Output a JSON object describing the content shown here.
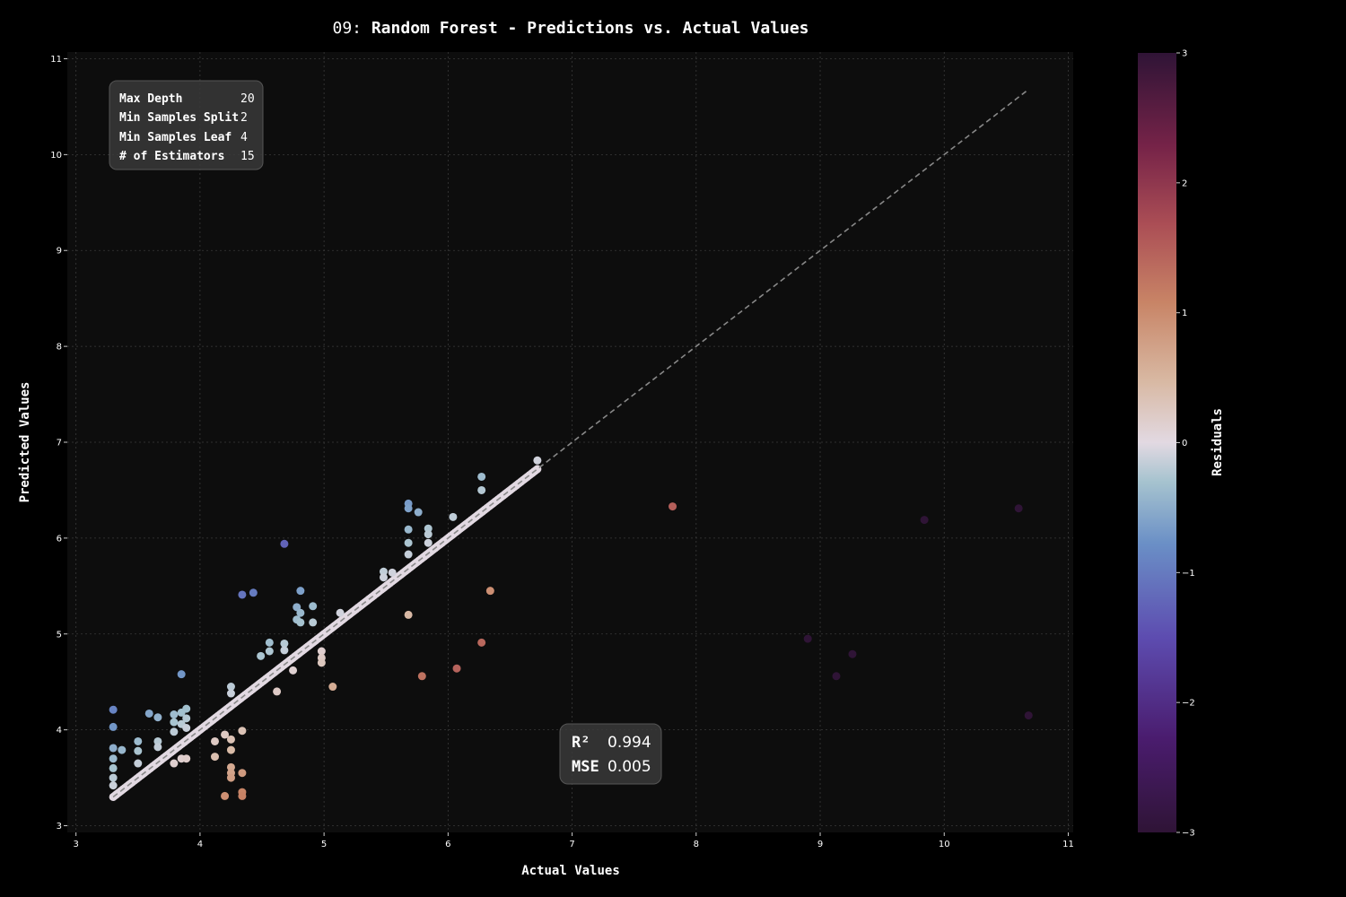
{
  "title_prefix": "09: ",
  "title": "Random Forest - Predictions vs. Actual Values",
  "xlabel": "Actual Values",
  "ylabel": "Predicted Values",
  "colorbar_label": "Residuals",
  "params": [
    {
      "label": "Max Depth",
      "value": "20"
    },
    {
      "label": "Min Samples Split",
      "value": "2"
    },
    {
      "label": "Min Samples Leaf",
      "value": "4"
    },
    {
      "label": "# of Estimators",
      "value": "15"
    }
  ],
  "metrics": [
    {
      "label": "R²",
      "value": "0.994"
    },
    {
      "label": "MSE",
      "value": "0.005"
    }
  ],
  "colors": {
    "background": "#000000",
    "plot_background": "#0d0d0d",
    "grid": "#3a3a3a",
    "diagonal": "#888888",
    "box": "#2b2b2b"
  },
  "chart_data": {
    "type": "scatter",
    "title": "09: Random Forest - Predictions vs. Actual Values",
    "xlabel": "Actual Values",
    "ylabel": "Predicted Values",
    "xlim": [
      2.93,
      11.04
    ],
    "ylim": [
      2.93,
      11.07
    ],
    "xticks": [
      3,
      4,
      5,
      6,
      7,
      8,
      9,
      10,
      11
    ],
    "yticks": [
      3,
      4,
      5,
      6,
      7,
      8,
      9,
      10,
      11
    ],
    "grid": true,
    "reference_line": {
      "from": [
        3.3,
        3.3
      ],
      "to": [
        10.68,
        10.68
      ],
      "style": "dashed"
    },
    "colorbar": {
      "label": "Residuals",
      "min": -3,
      "max": 3,
      "ticks": [
        3,
        2,
        1,
        0,
        -1,
        -2,
        -3
      ],
      "colormap": "twilight"
    },
    "diagonal_cluster": {
      "x_range": [
        3.3,
        6.72
      ],
      "residual": 0
    },
    "points": [
      {
        "x": 3.3,
        "y": 4.21,
        "r": -0.91
      },
      {
        "x": 3.3,
        "y": 4.03,
        "r": -0.73
      },
      {
        "x": 3.3,
        "y": 3.81,
        "r": -0.51
      },
      {
        "x": 3.3,
        "y": 3.7,
        "r": -0.4
      },
      {
        "x": 3.3,
        "y": 3.6,
        "r": -0.3
      },
      {
        "x": 3.3,
        "y": 3.5,
        "r": -0.2
      },
      {
        "x": 3.3,
        "y": 3.42,
        "r": -0.12
      },
      {
        "x": 3.37,
        "y": 3.79,
        "r": -0.42
      },
      {
        "x": 3.5,
        "y": 3.88,
        "r": -0.38
      },
      {
        "x": 3.5,
        "y": 3.78,
        "r": -0.28
      },
      {
        "x": 3.5,
        "y": 3.65,
        "r": -0.15
      },
      {
        "x": 3.59,
        "y": 4.17,
        "r": -0.58
      },
      {
        "x": 3.66,
        "y": 4.13,
        "r": -0.47
      },
      {
        "x": 3.66,
        "y": 3.88,
        "r": -0.22
      },
      {
        "x": 3.66,
        "y": 3.82,
        "r": -0.16
      },
      {
        "x": 3.79,
        "y": 4.16,
        "r": -0.37
      },
      {
        "x": 3.79,
        "y": 4.08,
        "r": -0.29
      },
      {
        "x": 3.79,
        "y": 3.98,
        "r": -0.19
      },
      {
        "x": 3.79,
        "y": 3.65,
        "r": 0.14
      },
      {
        "x": 3.85,
        "y": 4.58,
        "r": -0.73
      },
      {
        "x": 3.85,
        "y": 4.18,
        "r": -0.33
      },
      {
        "x": 3.85,
        "y": 4.06,
        "r": -0.21
      },
      {
        "x": 3.85,
        "y": 3.7,
        "r": 0.15
      },
      {
        "x": 3.89,
        "y": 4.22,
        "r": -0.33
      },
      {
        "x": 3.89,
        "y": 4.12,
        "r": -0.23
      },
      {
        "x": 3.89,
        "y": 4.02,
        "r": -0.13
      },
      {
        "x": 3.89,
        "y": 3.7,
        "r": 0.19
      },
      {
        "x": 4.12,
        "y": 3.88,
        "r": 0.24
      },
      {
        "x": 4.12,
        "y": 3.72,
        "r": 0.4
      },
      {
        "x": 4.2,
        "y": 3.95,
        "r": 0.25
      },
      {
        "x": 4.2,
        "y": 3.31,
        "r": 0.89
      },
      {
        "x": 4.25,
        "y": 4.45,
        "r": -0.2
      },
      {
        "x": 4.25,
        "y": 4.38,
        "r": -0.13
      },
      {
        "x": 4.25,
        "y": 3.9,
        "r": 0.35
      },
      {
        "x": 4.25,
        "y": 3.79,
        "r": 0.46
      },
      {
        "x": 4.25,
        "y": 3.61,
        "r": 0.64
      },
      {
        "x": 4.25,
        "y": 3.55,
        "r": 0.7
      },
      {
        "x": 4.25,
        "y": 3.5,
        "r": 0.75
      },
      {
        "x": 4.34,
        "y": 5.41,
        "r": -1.07
      },
      {
        "x": 4.34,
        "y": 3.99,
        "r": 0.35
      },
      {
        "x": 4.34,
        "y": 3.55,
        "r": 0.79
      },
      {
        "x": 4.34,
        "y": 3.35,
        "r": 0.99
      },
      {
        "x": 4.34,
        "y": 3.31,
        "r": 1.03
      },
      {
        "x": 4.43,
        "y": 5.43,
        "r": -1.0
      },
      {
        "x": 4.49,
        "y": 4.77,
        "r": -0.28
      },
      {
        "x": 4.56,
        "y": 4.91,
        "r": -0.35
      },
      {
        "x": 4.56,
        "y": 4.82,
        "r": -0.26
      },
      {
        "x": 4.62,
        "y": 4.4,
        "r": 0.22
      },
      {
        "x": 4.68,
        "y": 5.94,
        "r": -1.26
      },
      {
        "x": 4.68,
        "y": 4.9,
        "r": -0.22
      },
      {
        "x": 4.68,
        "y": 4.83,
        "r": -0.15
      },
      {
        "x": 4.75,
        "y": 4.62,
        "r": 0.13
      },
      {
        "x": 4.78,
        "y": 5.28,
        "r": -0.5
      },
      {
        "x": 4.78,
        "y": 5.15,
        "r": -0.37
      },
      {
        "x": 4.81,
        "y": 5.45,
        "r": -0.64
      },
      {
        "x": 4.81,
        "y": 5.22,
        "r": -0.41
      },
      {
        "x": 4.81,
        "y": 5.12,
        "r": -0.31
      },
      {
        "x": 4.91,
        "y": 5.29,
        "r": -0.38
      },
      {
        "x": 4.91,
        "y": 5.12,
        "r": -0.21
      },
      {
        "x": 4.98,
        "y": 4.82,
        "r": 0.16
      },
      {
        "x": 4.98,
        "y": 4.75,
        "r": 0.23
      },
      {
        "x": 4.98,
        "y": 4.7,
        "r": 0.28
      },
      {
        "x": 5.07,
        "y": 4.45,
        "r": 0.62
      },
      {
        "x": 5.13,
        "y": 5.22,
        "r": -0.09
      },
      {
        "x": 5.48,
        "y": 5.65,
        "r": -0.17
      },
      {
        "x": 5.48,
        "y": 5.59,
        "r": -0.11
      },
      {
        "x": 5.55,
        "y": 5.64,
        "r": -0.09
      },
      {
        "x": 5.68,
        "y": 6.36,
        "r": -0.68
      },
      {
        "x": 5.68,
        "y": 6.31,
        "r": -0.63
      },
      {
        "x": 5.68,
        "y": 6.09,
        "r": -0.41
      },
      {
        "x": 5.68,
        "y": 5.95,
        "r": -0.27
      },
      {
        "x": 5.68,
        "y": 5.83,
        "r": -0.15
      },
      {
        "x": 5.68,
        "y": 5.2,
        "r": 0.48
      },
      {
        "x": 5.76,
        "y": 6.27,
        "r": -0.51
      },
      {
        "x": 5.79,
        "y": 4.56,
        "r": 1.23
      },
      {
        "x": 5.84,
        "y": 6.1,
        "r": -0.26
      },
      {
        "x": 5.84,
        "y": 6.04,
        "r": -0.2
      },
      {
        "x": 5.84,
        "y": 5.95,
        "r": -0.11
      },
      {
        "x": 6.04,
        "y": 6.22,
        "r": -0.18
      },
      {
        "x": 6.07,
        "y": 4.64,
        "r": 1.43
      },
      {
        "x": 6.27,
        "y": 6.64,
        "r": -0.37
      },
      {
        "x": 6.27,
        "y": 6.5,
        "r": -0.23
      },
      {
        "x": 6.27,
        "y": 4.91,
        "r": 1.36
      },
      {
        "x": 6.34,
        "y": 5.45,
        "r": 0.89
      },
      {
        "x": 6.72,
        "y": 6.81,
        "r": -0.09
      },
      {
        "x": 7.81,
        "y": 6.33,
        "r": 1.48
      },
      {
        "x": 8.9,
        "y": 4.95,
        "r": 3.95
      },
      {
        "x": 9.13,
        "y": 4.56,
        "r": 4.57
      },
      {
        "x": 9.26,
        "y": 4.79,
        "r": 4.47
      },
      {
        "x": 9.84,
        "y": 6.19,
        "r": 3.65
      },
      {
        "x": 10.6,
        "y": 6.31,
        "r": 4.29
      },
      {
        "x": 10.68,
        "y": 4.15,
        "r": 6.53
      }
    ]
  }
}
